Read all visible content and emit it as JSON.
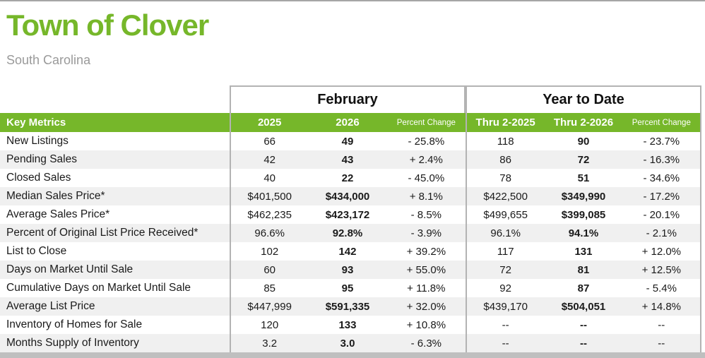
{
  "header": {
    "title": "Town of Clover",
    "subtitle": "South Carolina"
  },
  "table": {
    "key_metrics_label": "Key Metrics",
    "sections": {
      "month": {
        "title": "February",
        "columns": [
          "2025",
          "2026",
          "Percent Change"
        ]
      },
      "ytd": {
        "title": "Year to Date",
        "columns": [
          "Thru 2-2025",
          "Thru 2-2026",
          "Percent Change"
        ]
      }
    },
    "rows": [
      {
        "metric": "New Listings",
        "feb": [
          "66",
          "49",
          "- 25.8%"
        ],
        "ytd": [
          "118",
          "90",
          "- 23.7%"
        ]
      },
      {
        "metric": "Pending Sales",
        "feb": [
          "42",
          "43",
          "+ 2.4%"
        ],
        "ytd": [
          "86",
          "72",
          "- 16.3%"
        ]
      },
      {
        "metric": "Closed Sales",
        "feb": [
          "40",
          "22",
          "- 45.0%"
        ],
        "ytd": [
          "78",
          "51",
          "- 34.6%"
        ]
      },
      {
        "metric": "Median Sales Price*",
        "feb": [
          "$401,500",
          "$434,000",
          "+ 8.1%"
        ],
        "ytd": [
          "$422,500",
          "$349,990",
          "- 17.2%"
        ]
      },
      {
        "metric": "Average Sales Price*",
        "feb": [
          "$462,235",
          "$423,172",
          "- 8.5%"
        ],
        "ytd": [
          "$499,655",
          "$399,085",
          "- 20.1%"
        ]
      },
      {
        "metric": "Percent of Original List Price Received*",
        "feb": [
          "96.6%",
          "92.8%",
          "- 3.9%"
        ],
        "ytd": [
          "96.1%",
          "94.1%",
          "- 2.1%"
        ]
      },
      {
        "metric": "List to Close",
        "feb": [
          "102",
          "142",
          "+ 39.2%"
        ],
        "ytd": [
          "117",
          "131",
          "+ 12.0%"
        ]
      },
      {
        "metric": "Days on Market Until Sale",
        "feb": [
          "60",
          "93",
          "+ 55.0%"
        ],
        "ytd": [
          "72",
          "81",
          "+ 12.5%"
        ]
      },
      {
        "metric": "Cumulative Days on Market Until Sale",
        "feb": [
          "85",
          "95",
          "+ 11.8%"
        ],
        "ytd": [
          "92",
          "87",
          "- 5.4%"
        ]
      },
      {
        "metric": "Average List Price",
        "feb": [
          "$447,999",
          "$591,335",
          "+ 32.0%"
        ],
        "ytd": [
          "$439,170",
          "$504,051",
          "+ 14.8%"
        ]
      },
      {
        "metric": "Inventory of Homes for Sale",
        "feb": [
          "120",
          "133",
          "+ 10.8%"
        ],
        "ytd": [
          "--",
          "--",
          "--"
        ]
      },
      {
        "metric": "Months Supply of Inventory",
        "feb": [
          "3.2",
          "3.0",
          "- 6.3%"
        ],
        "ytd": [
          "--",
          "--",
          "--"
        ]
      }
    ]
  },
  "colors": {
    "accent_green": "#76b72a",
    "stripe_gray": "#f0f0f0",
    "border_gray": "#b3b3b3",
    "rule_gray": "#a6a6a6",
    "footer_gray": "#bfbfbf",
    "muted_gray": "#9a9a9a"
  }
}
